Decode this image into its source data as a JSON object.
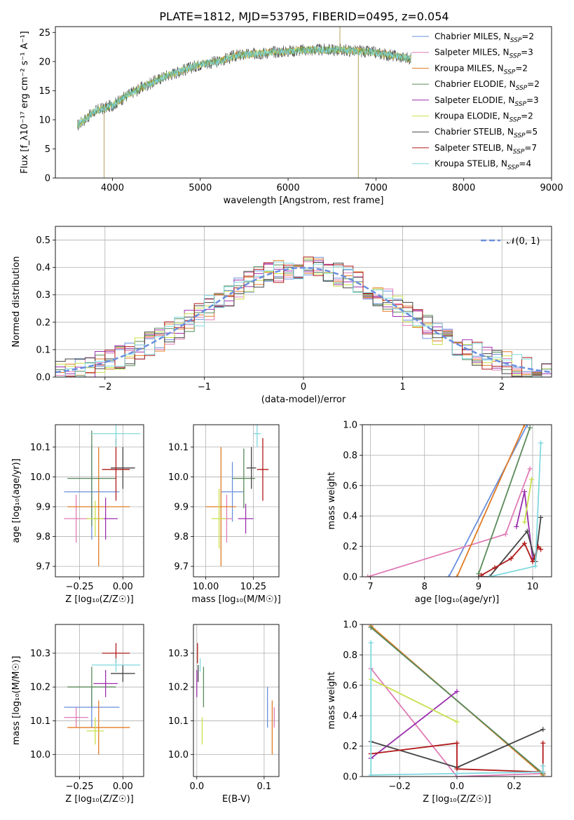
{
  "title": "PLATE=1812, MJD=53795, FIBERID=0495, z=0.054",
  "colors": {
    "Chabrier MILES": "#6a8fde",
    "Salpeter MILES": "#e07bb5",
    "Kroupa MILES": "#e07b24",
    "Chabrier ELODIE": "#5a8a5a",
    "Salpeter ELODIE": "#9b2fae",
    "Kroupa ELODIE": "#c8e04a",
    "Chabrier STELIB": "#444444",
    "Salpeter STELIB": "#b01a1a",
    "Kroupa STELIB": "#7fd8de"
  },
  "chart_data": [
    {
      "id": "spectrum",
      "type": "line",
      "xlabel": "wavelength [Angstrom, rest frame]",
      "ylabel": "Flux [f_λ10⁻¹⁷ erg cm⁻² s⁻¹ A⁻¹]",
      "xlim": [
        3350,
        9000
      ],
      "ylim": [
        0,
        26
      ],
      "xticks": [
        4000,
        5000,
        6000,
        7000,
        8000,
        9000
      ],
      "yticks": [
        0,
        5,
        10,
        15,
        20,
        25
      ],
      "grid": false,
      "legend_position": "top-right",
      "legend": [
        {
          "name": "Chabrier MILES",
          "nssp": "2"
        },
        {
          "name": "Salpeter MILES",
          "nssp": "3"
        },
        {
          "name": "Kroupa MILES",
          "nssp": "2"
        },
        {
          "name": "Chabrier ELODIE",
          "nssp": "2"
        },
        {
          "name": "Salpeter ELODIE",
          "nssp": "3"
        },
        {
          "name": "Kroupa ELODIE",
          "nssp": "2"
        },
        {
          "name": "Chabrier STELIB",
          "nssp": "5"
        },
        {
          "name": "Salpeter STELIB",
          "nssp": "7"
        },
        {
          "name": "Kroupa STELIB",
          "nssp": "4"
        }
      ],
      "continuum": {
        "x": [
          3600,
          3800,
          4000,
          4200,
          4400,
          4600,
          4800,
          5000,
          5200,
          5400,
          5600,
          5800,
          6000,
          6200,
          6400,
          6600,
          6800,
          7000,
          7200,
          7400
        ],
        "y": [
          9,
          11.5,
          12.5,
          14.5,
          16,
          17.5,
          18.5,
          19.5,
          20,
          21,
          21.3,
          21.6,
          21.8,
          22,
          22,
          22,
          21.8,
          21.5,
          21,
          20.5
        ]
      },
      "spikes": [
        {
          "x": 3905,
          "y": 0
        },
        {
          "x": 6800,
          "y": 0
        },
        {
          "x": 6590,
          "y": 26
        }
      ]
    },
    {
      "id": "residuals",
      "type": "histogram",
      "xlabel": "(data-model)/error",
      "ylabel": "Normed distribution",
      "xlim": [
        -2.5,
        2.5
      ],
      "ylim": [
        0,
        0.55
      ],
      "xticks": [
        -2,
        -1,
        0,
        1,
        2
      ],
      "yticks": [
        0.0,
        0.1,
        0.2,
        0.3,
        0.4,
        0.5
      ],
      "grid": true,
      "legend_position": "top-right",
      "legend_label": "𝒩(0, 1)",
      "bin_width": 0.1,
      "bin_start": -2.5
    },
    {
      "id": "age_vs_z",
      "type": "errorbar",
      "xlabel": "Z [log₁₀(Z/Z☉)]",
      "ylabel": "age  [log₁₀(age/yr)]",
      "xlim": [
        -0.39,
        0.12
      ],
      "ylim": [
        9.665,
        10.175
      ],
      "xticks": [
        -0.25,
        0.0
      ],
      "yticks": [
        9.7,
        9.8,
        9.9,
        10.0,
        10.1
      ],
      "grid": true,
      "points": [
        {
          "s": "Chabrier MILES",
          "x": -0.18,
          "xerr": 0.16,
          "y": 9.95,
          "yerr": 0.16
        },
        {
          "s": "Salpeter MILES",
          "x": -0.27,
          "xerr": 0.07,
          "y": 9.86,
          "yerr": 0.08
        },
        {
          "s": "Kroupa MILES",
          "x": -0.14,
          "xerr": 0.18,
          "y": 9.9,
          "yerr": 0.2
        },
        {
          "s": "Chabrier ELODIE",
          "x": -0.18,
          "xerr": 0.14,
          "y": 9.995,
          "yerr": 0.16
        },
        {
          "s": "Salpeter ELODIE",
          "x": -0.1,
          "xerr": 0.07,
          "y": 9.86,
          "yerr": 0.07
        },
        {
          "s": "Kroupa ELODIE",
          "x": -0.16,
          "xerr": 0.05,
          "y": 9.86,
          "yerr": 0.06
        },
        {
          "s": "Chabrier STELIB",
          "x": 0.0,
          "xerr": 0.07,
          "y": 10.03,
          "yerr": 0.07
        },
        {
          "s": "Salpeter STELIB",
          "x": -0.04,
          "xerr": 0.08,
          "y": 10.025,
          "yerr": 0.105
        },
        {
          "s": "Kroupa STELIB",
          "x": -0.04,
          "xerr": 0.14,
          "y": 10.145,
          "yerr": 0.045
        }
      ]
    },
    {
      "id": "age_vs_mass",
      "type": "errorbar",
      "xlabel": "mass [log₁₀(M/M☉)]",
      "ylabel": "",
      "xlim": [
        9.935,
        10.385
      ],
      "ylim": [
        9.665,
        10.175
      ],
      "xticks": [
        10.0,
        10.25
      ],
      "yticks": [
        9.7,
        9.8,
        9.9,
        10.0,
        10.1
      ],
      "grid": true,
      "points": [
        {
          "s": "Chabrier MILES",
          "x": 10.14,
          "xerr": 0.06,
          "y": 9.95,
          "yerr": 0.1
        },
        {
          "s": "Salpeter MILES",
          "x": 10.11,
          "xerr": 0.03,
          "y": 9.86,
          "yerr": 0.08
        },
        {
          "s": "Kroupa MILES",
          "x": 10.08,
          "xerr": 0.08,
          "y": 9.9,
          "yerr": 0.2
        },
        {
          "s": "Chabrier ELODIE",
          "x": 10.2,
          "xerr": 0.06,
          "y": 9.995,
          "yerr": 0.1
        },
        {
          "s": "Salpeter ELODIE",
          "x": 10.21,
          "xerr": 0.04,
          "y": 9.86,
          "yerr": 0.05
        },
        {
          "s": "Kroupa ELODIE",
          "x": 10.07,
          "xerr": 0.04,
          "y": 9.86,
          "yerr": 0.1
        },
        {
          "s": "Chabrier STELIB",
          "x": 10.24,
          "xerr": 0.025,
          "y": 10.03,
          "yerr": 0.07
        },
        {
          "s": "Salpeter STELIB",
          "x": 10.3,
          "xerr": 0.03,
          "y": 10.025,
          "yerr": 0.105
        },
        {
          "s": "Kroupa STELIB",
          "x": 10.27,
          "xerr": 0.02,
          "y": 10.145,
          "yerr": 0.045
        }
      ]
    },
    {
      "id": "mass_vs_z",
      "type": "errorbar",
      "xlabel": "Z [log₁₀(Z/Z☉)]",
      "ylabel": "mass [log₁₀(M/M☉)]",
      "xlim": [
        -0.39,
        0.12
      ],
      "ylim": [
        9.935,
        10.385
      ],
      "xticks": [
        -0.25,
        0.0
      ],
      "yticks": [
        10.0,
        10.1,
        10.2,
        10.3
      ],
      "grid": true,
      "points": [
        {
          "s": "Chabrier MILES",
          "x": -0.18,
          "xerr": 0.16,
          "y": 10.14,
          "yerr": 0.06
        },
        {
          "s": "Salpeter MILES",
          "x": -0.27,
          "xerr": 0.07,
          "y": 10.11,
          "yerr": 0.03
        },
        {
          "s": "Kroupa MILES",
          "x": -0.14,
          "xerr": 0.18,
          "y": 10.08,
          "yerr": 0.08
        },
        {
          "s": "Chabrier ELODIE",
          "x": -0.18,
          "xerr": 0.14,
          "y": 10.2,
          "yerr": 0.06
        },
        {
          "s": "Salpeter ELODIE",
          "x": -0.1,
          "xerr": 0.07,
          "y": 10.21,
          "yerr": 0.04
        },
        {
          "s": "Kroupa ELODIE",
          "x": -0.16,
          "xerr": 0.05,
          "y": 10.07,
          "yerr": 0.04
        },
        {
          "s": "Chabrier STELIB",
          "x": 0.0,
          "xerr": 0.07,
          "y": 10.24,
          "yerr": 0.025
        },
        {
          "s": "Salpeter STELIB",
          "x": -0.04,
          "xerr": 0.08,
          "y": 10.3,
          "yerr": 0.03
        },
        {
          "s": "Kroupa STELIB",
          "x": -0.04,
          "xerr": 0.14,
          "y": 10.265,
          "yerr": 0.02
        }
      ]
    },
    {
      "id": "mass_vs_ebv",
      "type": "errorbar",
      "xlabel": "E(B-V)",
      "ylabel": "",
      "xlim": [
        -0.005,
        0.122
      ],
      "ylim": [
        9.935,
        10.385
      ],
      "xticks": [
        0.0,
        0.1
      ],
      "yticks": [
        10.0,
        10.1,
        10.2,
        10.3
      ],
      "grid": true,
      "points": [
        {
          "s": "Chabrier MILES",
          "x": 0.105,
          "y": 10.14,
          "yerr": 0.06
        },
        {
          "s": "Salpeter MILES",
          "x": 0.115,
          "y": 10.11,
          "yerr": 0.03
        },
        {
          "s": "Kroupa MILES",
          "x": 0.112,
          "y": 10.08,
          "yerr": 0.08
        },
        {
          "s": "Chabrier ELODIE",
          "x": 0.01,
          "y": 10.2,
          "yerr": 0.06
        },
        {
          "s": "Salpeter ELODIE",
          "x": 0.0,
          "y": 10.21,
          "yerr": 0.04
        },
        {
          "s": "Kroupa ELODIE",
          "x": 0.008,
          "y": 10.07,
          "yerr": 0.04
        },
        {
          "s": "Chabrier STELIB",
          "x": 0.002,
          "y": 10.24,
          "yerr": 0.025
        },
        {
          "s": "Salpeter STELIB",
          "x": 0.001,
          "y": 10.3,
          "yerr": 0.03
        },
        {
          "s": "Kroupa STELIB",
          "x": 0.005,
          "y": 10.265,
          "yerr": 0.02
        }
      ]
    },
    {
      "id": "weight_vs_age",
      "type": "line",
      "xlabel": "age  [log₁₀(age/yr)]",
      "ylabel": "mass weight",
      "xlim": [
        6.85,
        10.35
      ],
      "ylim": [
        0,
        1
      ],
      "xticks": [
        7,
        8,
        9,
        10
      ],
      "yticks": [
        0.0,
        0.2,
        0.4,
        0.6,
        0.8,
        1.0
      ],
      "grid": true,
      "series": [
        {
          "s": "Chabrier MILES",
          "x": [
            8.45,
            9.9
          ],
          "y": [
            0.0,
            1.0
          ]
        },
        {
          "s": "Salpeter MILES",
          "x": [
            6.95,
            9.5,
            9.95
          ],
          "y": [
            0.0,
            0.28,
            0.71
          ]
        },
        {
          "s": "Kroupa MILES",
          "x": [
            8.6,
            9.85
          ],
          "y": [
            0.0,
            1.0
          ]
        },
        {
          "s": "Chabrier ELODIE",
          "x": [
            9.0,
            9.95
          ],
          "y": [
            0.02,
            0.98
          ]
        },
        {
          "s": "Salpeter ELODIE",
          "x": [
            9.7,
            9.85,
            10.0
          ],
          "y": [
            0.33,
            0.56,
            0.12
          ]
        },
        {
          "s": "Kroupa ELODIE",
          "x": [
            9.85,
            9.98
          ],
          "y": [
            0.36,
            0.64
          ]
        },
        {
          "s": "Chabrier STELIB",
          "x": [
            9.0,
            9.2,
            9.9,
            10.05,
            10.15
          ],
          "y": [
            0.0,
            0.0,
            0.3,
            0.1,
            0.39
          ]
        },
        {
          "s": "Salpeter STELIB",
          "x": [
            9.05,
            9.3,
            9.6,
            9.85,
            10.0,
            10.1,
            10.15
          ],
          "y": [
            0.01,
            0.06,
            0.12,
            0.22,
            0.1,
            0.2,
            0.18
          ]
        },
        {
          "s": "Kroupa STELIB",
          "x": [
            9.2,
            10.05,
            10.15
          ],
          "y": [
            0.0,
            0.07,
            0.88
          ]
        }
      ]
    },
    {
      "id": "weight_vs_z",
      "type": "line",
      "xlabel": "Z [log₁₀(Z/Z☉)]",
      "ylabel": "mass weight",
      "xlim": [
        -0.33,
        0.33
      ],
      "ylim": [
        0,
        1
      ],
      "xticks": [
        -0.2,
        0.0,
        0.2
      ],
      "yticks": [
        0.0,
        0.2,
        0.4,
        0.6,
        0.8,
        1.0
      ],
      "grid": true,
      "series": [
        {
          "s": "Chabrier MILES",
          "x": [
            -0.3,
            0.3
          ],
          "y": [
            0.98,
            0.02
          ]
        },
        {
          "s": "Salpeter MILES",
          "x": [
            -0.3,
            0.0,
            0.3
          ],
          "y": [
            0.71,
            0.0,
            0.02
          ]
        },
        {
          "s": "Kroupa MILES",
          "x": [
            -0.3,
            0.3
          ],
          "y": [
            0.99,
            0.01
          ]
        },
        {
          "s": "Chabrier ELODIE",
          "x": [
            -0.3,
            0.3
          ],
          "y": [
            0.98,
            0.02
          ]
        },
        {
          "s": "Salpeter ELODIE",
          "x": [
            -0.3,
            0.0
          ],
          "y": [
            0.12,
            0.56
          ]
        },
        {
          "s": "Kroupa ELODIE",
          "x": [
            -0.3,
            0.0
          ],
          "y": [
            0.64,
            0.36
          ]
        },
        {
          "s": "Chabrier STELIB",
          "x": [
            -0.3,
            0.0,
            0.3
          ],
          "y": [
            0.23,
            0.06,
            0.31
          ]
        },
        {
          "s": "Salpeter STELIB",
          "x": [
            -0.3,
            0.0,
            0.0,
            0.3,
            0.3
          ],
          "y": [
            0.15,
            0.22,
            0.05,
            0.03,
            0.22
          ]
        },
        {
          "s": "Kroupa STELIB",
          "x": [
            -0.3,
            -0.3,
            0.0,
            0.3,
            0.3
          ],
          "y": [
            0.88,
            0.01,
            0.02,
            0.03,
            0.07
          ]
        }
      ]
    }
  ]
}
